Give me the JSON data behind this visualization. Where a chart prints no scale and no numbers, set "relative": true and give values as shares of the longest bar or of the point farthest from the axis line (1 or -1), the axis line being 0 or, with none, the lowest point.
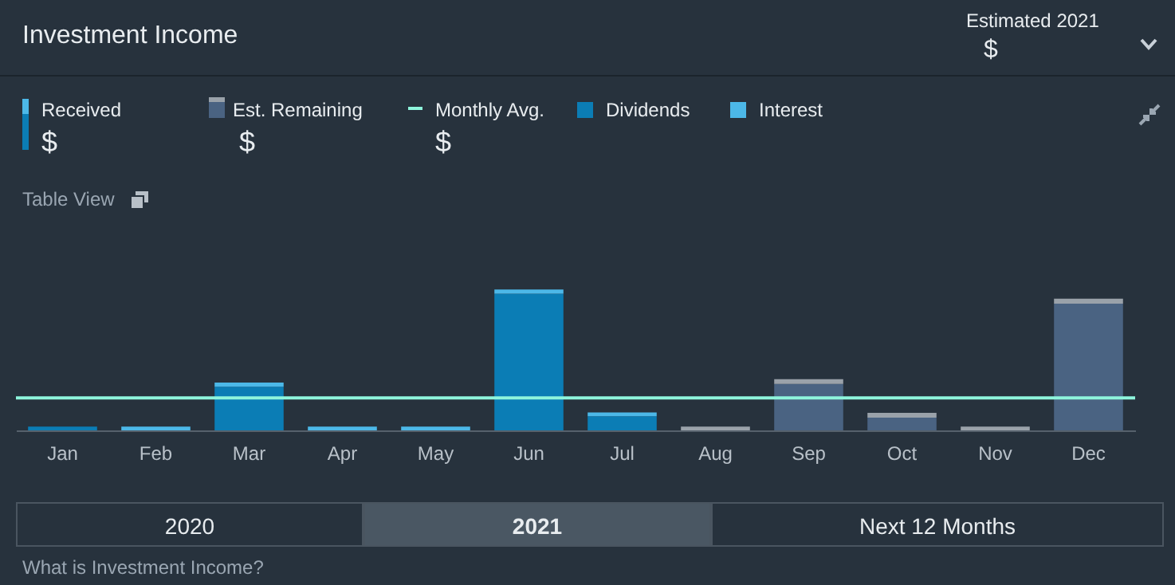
{
  "chart_data": {
    "type": "bar",
    "title": "Investment Income",
    "relative": true,
    "stacked": true,
    "legend": "top left",
    "categories": [
      "Jan",
      "Feb",
      "Mar",
      "Apr",
      "May",
      "Jun",
      "Jul",
      "Aug",
      "Sep",
      "Oct",
      "Nov",
      "Dec"
    ],
    "series": [
      {
        "name": "Dividends",
        "color": "#0b7db5",
        "values": [
          0.027,
          null,
          0.31,
          null,
          null,
          0.97,
          0.1,
          null,
          null,
          null,
          null,
          null
        ]
      },
      {
        "name": "Interest",
        "color": "#4cb8e8",
        "values": [
          null,
          0.027,
          0.03,
          0.027,
          0.027,
          0.03,
          0.027,
          null,
          null,
          null,
          null,
          null
        ]
      },
      {
        "name": "Est. Remaining",
        "color": "#4a6382",
        "values": [
          null,
          null,
          null,
          null,
          null,
          null,
          null,
          null,
          0.33,
          0.09,
          null,
          0.9
        ]
      },
      {
        "color": "#9aa2aa",
        "values": [
          null,
          null,
          null,
          null,
          null,
          null,
          null,
          0.027,
          0.034,
          0.034,
          0.027,
          0.034
        ]
      }
    ],
    "ref_lines": [
      {
        "axis": "y",
        "value": 0.23,
        "label": "Monthly Avg.",
        "color": "#8ef5dc"
      }
    ],
    "annotations": [
      "Estimated 2021",
      "$",
      "Received",
      "$",
      "$",
      "$",
      "Table View",
      "2020",
      "2021",
      "Next 12 Months",
      "What is Investment Income?"
    ]
  }
}
